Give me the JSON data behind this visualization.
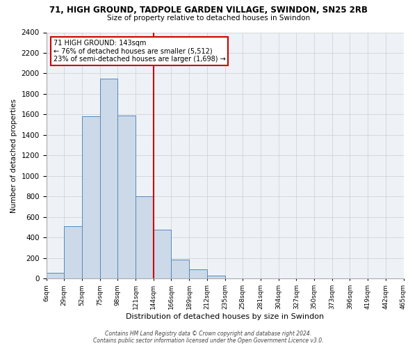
{
  "title": "71, HIGH GROUND, TADPOLE GARDEN VILLAGE, SWINDON, SN25 2RB",
  "subtitle": "Size of property relative to detached houses in Swindon",
  "xlabel": "Distribution of detached houses by size in Swindon",
  "ylabel": "Number of detached properties",
  "bin_labels": [
    "6sqm",
    "29sqm",
    "52sqm",
    "75sqm",
    "98sqm",
    "121sqm",
    "144sqm",
    "166sqm",
    "189sqm",
    "212sqm",
    "235sqm",
    "258sqm",
    "281sqm",
    "304sqm",
    "327sqm",
    "350sqm",
    "373sqm",
    "396sqm",
    "419sqm",
    "442sqm",
    "465sqm"
  ],
  "bar_values": [
    55,
    510,
    1580,
    1950,
    1590,
    800,
    480,
    185,
    90,
    30,
    0,
    0,
    0,
    0,
    0,
    0,
    0,
    0,
    0,
    0
  ],
  "bar_color": "#ccd9e8",
  "bar_edge_color": "#5588bb",
  "grid_color": "#cccccc",
  "background_color": "#eef2f7",
  "vline_color": "#cc0000",
  "vline_position": 5,
  "annotation_title": "71 HIGH GROUND: 143sqm",
  "annotation_line1": "← 76% of detached houses are smaller (5,512)",
  "annotation_line2": "23% of semi-detached houses are larger (1,698) →",
  "annotation_box_color": "#ffffff",
  "annotation_box_edge_color": "#cc0000",
  "ylim": [
    0,
    2400
  ],
  "yticks": [
    0,
    200,
    400,
    600,
    800,
    1000,
    1200,
    1400,
    1600,
    1800,
    2000,
    2200,
    2400
  ],
  "footer_line1": "Contains HM Land Registry data © Crown copyright and database right 2024.",
  "footer_line2": "Contains public sector information licensed under the Open Government Licence v3.0."
}
